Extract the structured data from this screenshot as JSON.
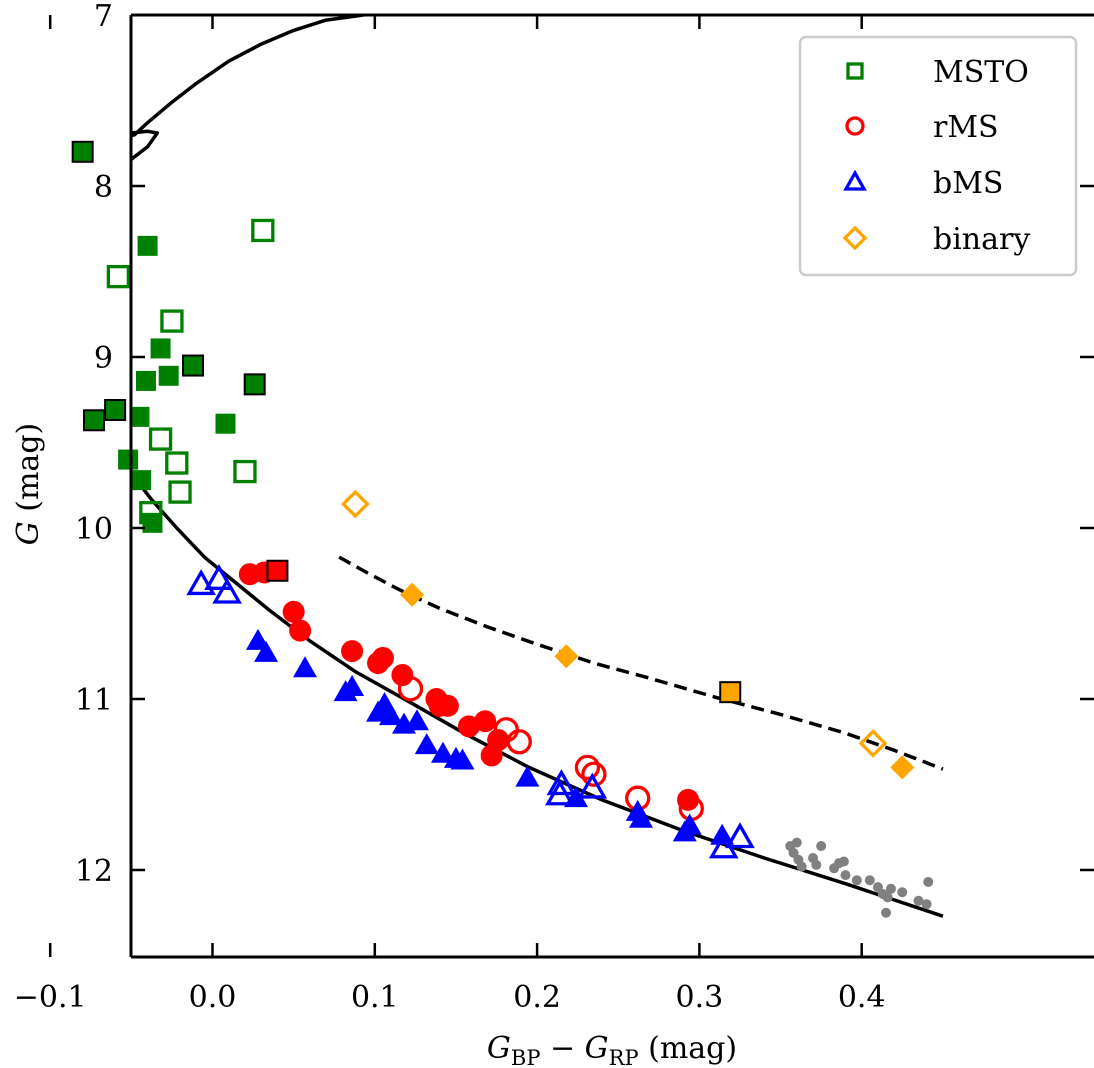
{
  "chart_data": {
    "type": "scatter",
    "xlabel": {
      "main": "G",
      "sub1": "BP",
      "minus": " − ",
      "main2": "G",
      "sub2": "RP",
      "unit": " (mag)"
    },
    "ylabel": {
      "main": "G",
      "unit": " (mag)"
    },
    "xlim": [
      -0.15,
      0.45
    ],
    "ylim": [
      12.5,
      7.0
    ],
    "y_inverted": true,
    "x_ticks": [
      -0.1,
      0.0,
      0.1,
      0.2,
      0.3,
      0.4
    ],
    "x_tick_labels": [
      "−0.1",
      "0.0",
      "0.1",
      "0.2",
      "0.3",
      "0.4"
    ],
    "y_ticks": [
      7,
      8,
      9,
      10,
      11,
      12
    ],
    "y_tick_labels": [
      "7",
      "8",
      "9",
      "10",
      "11",
      "12"
    ],
    "grid": false,
    "legend": {
      "placement": "top-right",
      "entries": [
        {
          "label": "MSTO",
          "marker": "square",
          "color": "#008000"
        },
        {
          "label": "rMS",
          "marker": "circle",
          "color": "#ff0000"
        },
        {
          "label": "bMS",
          "marker": "triangle",
          "color": "#0000ff"
        },
        {
          "label": "binary",
          "marker": "diamond",
          "color": "#ffa500"
        }
      ]
    },
    "series": [
      {
        "name": "MSTO",
        "marker": "square",
        "color": "#008000",
        "points": [
          {
            "x": -0.08,
            "y": 7.8,
            "fill": true,
            "edge": "black"
          },
          {
            "x": -0.04,
            "y": 8.35,
            "fill": true
          },
          {
            "x": 0.031,
            "y": 8.26,
            "fill": false
          },
          {
            "x": -0.058,
            "y": 8.53,
            "fill": false
          },
          {
            "x": -0.025,
            "y": 8.79,
            "fill": false
          },
          {
            "x": -0.032,
            "y": 8.95,
            "fill": true
          },
          {
            "x": -0.027,
            "y": 9.11,
            "fill": true
          },
          {
            "x": -0.012,
            "y": 9.05,
            "fill": true,
            "edge": "black"
          },
          {
            "x": -0.041,
            "y": 9.14,
            "fill": true
          },
          {
            "x": 0.026,
            "y": 9.16,
            "fill": true,
            "edge": "black"
          },
          {
            "x": -0.06,
            "y": 9.31,
            "fill": true,
            "edge": "black"
          },
          {
            "x": -0.073,
            "y": 9.37,
            "fill": true,
            "edge": "black"
          },
          {
            "x": -0.045,
            "y": 9.35,
            "fill": true
          },
          {
            "x": 0.008,
            "y": 9.39,
            "fill": true
          },
          {
            "x": -0.032,
            "y": 9.48,
            "fill": false
          },
          {
            "x": -0.052,
            "y": 9.6,
            "fill": true
          },
          {
            "x": -0.022,
            "y": 9.62,
            "fill": false
          },
          {
            "x": 0.02,
            "y": 9.67,
            "fill": false
          },
          {
            "x": -0.044,
            "y": 9.72,
            "fill": true
          },
          {
            "x": -0.02,
            "y": 9.79,
            "fill": false
          },
          {
            "x": -0.038,
            "y": 9.91,
            "fill": false
          },
          {
            "x": -0.037,
            "y": 9.97,
            "fill": true
          }
        ]
      },
      {
        "name": "rMS",
        "marker": "circle",
        "color": "#ff0000",
        "points": [
          {
            "x": 0.023,
            "y": 10.27,
            "fill": true
          },
          {
            "x": 0.032,
            "y": 10.26,
            "fill": true
          },
          {
            "x": 0.05,
            "y": 10.49,
            "fill": true
          },
          {
            "x": 0.054,
            "y": 10.6,
            "fill": true
          },
          {
            "x": 0.086,
            "y": 10.72,
            "fill": true
          },
          {
            "x": 0.102,
            "y": 10.79,
            "fill": true
          },
          {
            "x": 0.105,
            "y": 10.76,
            "fill": true
          },
          {
            "x": 0.117,
            "y": 10.86,
            "fill": true
          },
          {
            "x": 0.122,
            "y": 10.94,
            "fill": false
          },
          {
            "x": 0.138,
            "y": 11.0,
            "fill": true
          },
          {
            "x": 0.14,
            "y": 11.04,
            "fill": true
          },
          {
            "x": 0.145,
            "y": 11.04,
            "fill": true
          },
          {
            "x": 0.158,
            "y": 11.16,
            "fill": true
          },
          {
            "x": 0.168,
            "y": 11.13,
            "fill": true
          },
          {
            "x": 0.176,
            "y": 11.24,
            "fill": true
          },
          {
            "x": 0.172,
            "y": 11.33,
            "fill": true
          },
          {
            "x": 0.181,
            "y": 11.18,
            "fill": false
          },
          {
            "x": 0.189,
            "y": 11.25,
            "fill": false
          },
          {
            "x": 0.231,
            "y": 11.4,
            "fill": false
          },
          {
            "x": 0.235,
            "y": 11.44,
            "fill": false
          },
          {
            "x": 0.262,
            "y": 11.58,
            "fill": false
          },
          {
            "x": 0.293,
            "y": 11.59,
            "fill": true
          },
          {
            "x": 0.295,
            "y": 11.64,
            "fill": false
          }
        ]
      },
      {
        "name": "bMS",
        "marker": "triangle",
        "color": "#0000ff",
        "points": [
          {
            "x": -0.007,
            "y": 10.33,
            "fill": false
          },
          {
            "x": 0.004,
            "y": 10.3,
            "fill": false
          },
          {
            "x": 0.009,
            "y": 10.38,
            "fill": false
          },
          {
            "x": 0.028,
            "y": 10.66,
            "fill": true
          },
          {
            "x": 0.033,
            "y": 10.73,
            "fill": true
          },
          {
            "x": 0.057,
            "y": 10.82,
            "fill": true
          },
          {
            "x": 0.082,
            "y": 10.96,
            "fill": true
          },
          {
            "x": 0.086,
            "y": 10.93,
            "fill": true
          },
          {
            "x": 0.102,
            "y": 11.08,
            "fill": true
          },
          {
            "x": 0.106,
            "y": 11.03,
            "fill": true
          },
          {
            "x": 0.11,
            "y": 11.1,
            "fill": true
          },
          {
            "x": 0.118,
            "y": 11.15,
            "fill": true
          },
          {
            "x": 0.126,
            "y": 11.13,
            "fill": true
          },
          {
            "x": 0.132,
            "y": 11.27,
            "fill": true
          },
          {
            "x": 0.142,
            "y": 11.32,
            "fill": true
          },
          {
            "x": 0.15,
            "y": 11.35,
            "fill": true
          },
          {
            "x": 0.154,
            "y": 11.36,
            "fill": true
          },
          {
            "x": 0.194,
            "y": 11.46,
            "fill": true
          },
          {
            "x": 0.215,
            "y": 11.5,
            "fill": false
          },
          {
            "x": 0.214,
            "y": 11.56,
            "fill": false
          },
          {
            "x": 0.224,
            "y": 11.58,
            "fill": true
          },
          {
            "x": 0.234,
            "y": 11.52,
            "fill": false
          },
          {
            "x": 0.262,
            "y": 11.66,
            "fill": true
          },
          {
            "x": 0.264,
            "y": 11.7,
            "fill": true
          },
          {
            "x": 0.291,
            "y": 11.78,
            "fill": true
          },
          {
            "x": 0.294,
            "y": 11.74,
            "fill": true
          },
          {
            "x": 0.314,
            "y": 11.8,
            "fill": true
          },
          {
            "x": 0.315,
            "y": 11.87,
            "fill": false
          },
          {
            "x": 0.325,
            "y": 11.81,
            "fill": false
          }
        ]
      },
      {
        "name": "binary",
        "marker": "diamond",
        "color": "#ffa500",
        "points": [
          {
            "x": 0.088,
            "y": 9.86,
            "fill": false
          },
          {
            "x": 0.123,
            "y": 10.39,
            "fill": true
          },
          {
            "x": 0.218,
            "y": 10.75,
            "fill": true
          },
          {
            "x": 0.407,
            "y": 11.26,
            "fill": false
          },
          {
            "x": 0.425,
            "y": 11.4,
            "fill": true
          }
        ]
      }
    ],
    "orange_square": {
      "x": 0.319,
      "y": 10.96
    },
    "red_square": {
      "x": 0.04,
      "y": 10.25
    },
    "field_stars": [
      {
        "x": 0.356,
        "y": 11.86
      },
      {
        "x": 0.358,
        "y": 11.9
      },
      {
        "x": 0.36,
        "y": 11.84
      },
      {
        "x": 0.361,
        "y": 11.94
      },
      {
        "x": 0.363,
        "y": 11.98
      },
      {
        "x": 0.37,
        "y": 11.93
      },
      {
        "x": 0.372,
        "y": 11.97
      },
      {
        "x": 0.375,
        "y": 11.86
      },
      {
        "x": 0.383,
        "y": 11.99
      },
      {
        "x": 0.386,
        "y": 11.96
      },
      {
        "x": 0.389,
        "y": 11.95
      },
      {
        "x": 0.39,
        "y": 12.03
      },
      {
        "x": 0.397,
        "y": 12.06
      },
      {
        "x": 0.405,
        "y": 12.06
      },
      {
        "x": 0.41,
        "y": 12.1
      },
      {
        "x": 0.413,
        "y": 12.14
      },
      {
        "x": 0.416,
        "y": 12.16
      },
      {
        "x": 0.418,
        "y": 12.11
      },
      {
        "x": 0.415,
        "y": 12.25
      },
      {
        "x": 0.425,
        "y": 12.13
      },
      {
        "x": 0.435,
        "y": 12.18
      },
      {
        "x": 0.441,
        "y": 12.07
      },
      {
        "x": 0.44,
        "y": 12.2
      }
    ],
    "isochrone": [
      [
        0.093,
        7.0
      ],
      [
        0.07,
        7.03
      ],
      [
        0.05,
        7.09
      ],
      [
        0.03,
        7.17
      ],
      [
        0.01,
        7.27
      ],
      [
        -0.01,
        7.4
      ],
      [
        -0.025,
        7.51
      ],
      [
        -0.04,
        7.63
      ],
      [
        -0.048,
        7.7
      ],
      [
        -0.055,
        7.72
      ],
      [
        -0.072,
        7.7
      ],
      [
        -0.09,
        7.71
      ],
      [
        -0.1,
        7.73
      ],
      [
        -0.088,
        7.76
      ],
      [
        -0.074,
        7.75
      ],
      [
        -0.06,
        7.71
      ],
      [
        -0.05,
        7.69
      ],
      [
        -0.04,
        7.68
      ],
      [
        -0.034,
        7.69
      ],
      [
        -0.04,
        7.77
      ],
      [
        -0.055,
        7.88
      ],
      [
        -0.07,
        8.03
      ],
      [
        -0.081,
        8.22
      ],
      [
        -0.087,
        8.42
      ],
      [
        -0.089,
        8.63
      ],
      [
        -0.088,
        8.83
      ],
      [
        -0.085,
        9.01
      ],
      [
        -0.08,
        9.17
      ],
      [
        -0.073,
        9.33
      ],
      [
        -0.063,
        9.5
      ],
      [
        -0.051,
        9.67
      ],
      [
        -0.037,
        9.84
      ],
      [
        -0.022,
        10.0
      ],
      [
        -0.005,
        10.17
      ],
      [
        0.013,
        10.31
      ],
      [
        0.035,
        10.48
      ],
      [
        0.06,
        10.66
      ],
      [
        0.088,
        10.84
      ],
      [
        0.12,
        11.01
      ],
      [
        0.155,
        11.2
      ],
      [
        0.195,
        11.4
      ],
      [
        0.24,
        11.59
      ],
      [
        0.29,
        11.77
      ],
      [
        0.34,
        11.93
      ],
      [
        0.39,
        12.08
      ],
      [
        0.45,
        12.27
      ]
    ],
    "binary_sequence": [
      [
        0.078,
        10.17
      ],
      [
        0.095,
        10.26
      ],
      [
        0.115,
        10.36
      ],
      [
        0.14,
        10.47
      ],
      [
        0.17,
        10.58
      ],
      [
        0.2,
        10.68
      ],
      [
        0.235,
        10.79
      ],
      [
        0.27,
        10.88
      ],
      [
        0.31,
        10.99
      ],
      [
        0.35,
        11.09
      ],
      [
        0.39,
        11.2
      ],
      [
        0.42,
        11.3
      ],
      [
        0.45,
        11.41
      ]
    ]
  }
}
